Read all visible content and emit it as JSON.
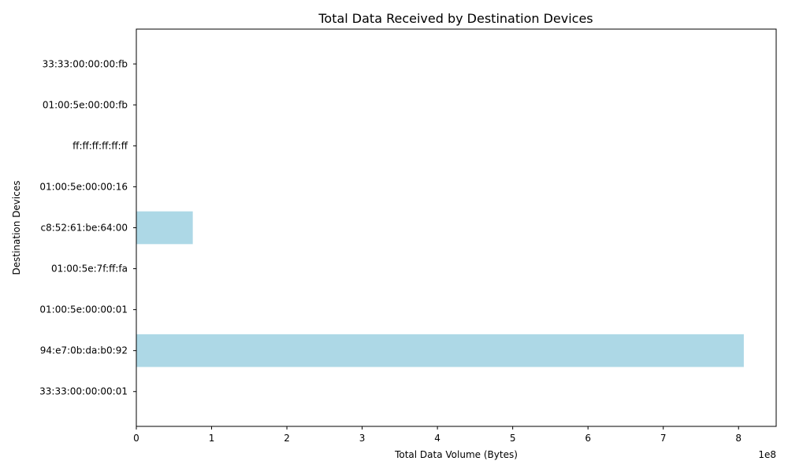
{
  "chart_data": {
    "type": "bar",
    "orientation": "horizontal",
    "title": "Total Data Received by Destination Devices",
    "xlabel": "Total Data Volume (Bytes)",
    "ylabel": "Destination Devices",
    "x_offset_label": "1e8",
    "xlim": [
      0,
      850000000
    ],
    "xticks": [
      0,
      100000000,
      200000000,
      300000000,
      400000000,
      500000000,
      600000000,
      700000000,
      800000000
    ],
    "xtick_labels": [
      "0",
      "1",
      "2",
      "3",
      "4",
      "5",
      "6",
      "7",
      "8"
    ],
    "categories": [
      "33:33:00:00:00:fb",
      "01:00:5e:00:00:fb",
      "ff:ff:ff:ff:ff:ff",
      "01:00:5e:00:00:16",
      "c8:52:61:be:64:00",
      "01:00:5e:7f:ff:fa",
      "01:00:5e:00:00:01",
      "94:e7:0b:da:b0:92",
      "33:33:00:00:00:01"
    ],
    "values": [
      30000,
      60000,
      120000,
      15000,
      75000000,
      400000,
      8000,
      807000000,
      5000
    ],
    "bar_color": "#add8e6",
    "grid": false
  }
}
